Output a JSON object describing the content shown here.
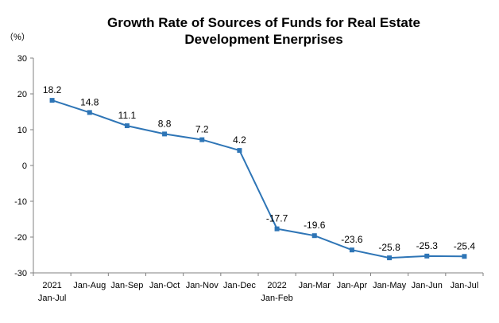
{
  "chart_data": {
    "type": "line",
    "title_lines": [
      "Growth Rate of Sources of Funds for Real Estate",
      "Development Enerprises"
    ],
    "unit": "（%）",
    "ylim": [
      -30,
      30
    ],
    "yticks": [
      30,
      20,
      10,
      0,
      -10,
      -20,
      -30
    ],
    "grid": false,
    "legend": "none",
    "series_color": "#2e75b6",
    "axis_color": "#808080",
    "categories": [
      {
        "line1": "2021",
        "line2": "Jan-Jul"
      },
      {
        "line1": "Jan-Aug",
        "line2": ""
      },
      {
        "line1": "Jan-Sep",
        "line2": ""
      },
      {
        "line1": "Jan-Oct",
        "line2": ""
      },
      {
        "line1": "Jan-Nov",
        "line2": ""
      },
      {
        "line1": "Jan-Dec",
        "line2": ""
      },
      {
        "line1": "2022",
        "line2": "Jan-Feb"
      },
      {
        "line1": "Jan-Mar",
        "line2": ""
      },
      {
        "line1": "Jan-Apr",
        "line2": ""
      },
      {
        "line1": "Jan-May",
        "line2": ""
      },
      {
        "line1": "Jan-Jun",
        "line2": ""
      },
      {
        "line1": "Jan-Jul",
        "line2": ""
      }
    ],
    "values": [
      18.2,
      14.8,
      11.1,
      8.8,
      7.2,
      4.2,
      -17.7,
      -19.6,
      -23.6,
      -25.8,
      -25.3,
      -25.4
    ],
    "data_labels": [
      "18.2",
      "14.8",
      "11.1",
      "8.8",
      "7.2",
      "4.2",
      "-17.7",
      "-19.6",
      "-23.6",
      "-25.8",
      "-25.3",
      "-25.4"
    ]
  }
}
